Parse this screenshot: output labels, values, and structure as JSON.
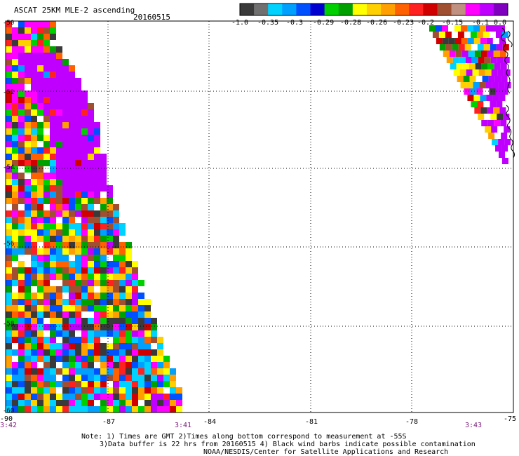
{
  "header": {
    "title": "ASCAT 25KM MLE-2 ascending",
    "date": "20160515"
  },
  "colorbar": {
    "colors": [
      "#3a3a3a",
      "#707070",
      "#00d2ff",
      "#00a0ff",
      "#0050ff",
      "#0000d0",
      "#00d000",
      "#00a000",
      "#ffff00",
      "#ffd000",
      "#ffa000",
      "#ff6000",
      "#ff2020",
      "#d00000",
      "#a05030",
      "#c09080",
      "#ff00ff",
      "#c000ff",
      "#8000c0"
    ],
    "ticks": [
      "-1.0",
      "-0.35",
      "-0.3",
      "-0.29",
      "-0.28",
      "-0.26",
      "-0.23",
      "-0.2",
      "-0.15",
      "-0.1",
      "0.0"
    ]
  },
  "map": {
    "lat_labels": [
      "-50",
      "-52",
      "-54",
      "-56",
      "-58",
      "-60"
    ],
    "lon_labels": [
      "-90",
      "-87",
      "-84",
      "-81",
      "-78",
      "-75"
    ],
    "times": [
      "3:42",
      "3:41",
      "3:43"
    ]
  },
  "notes": {
    "line1": "Note: 1) Times are GMT 2)Times along bottom correspond to measurement at -55S",
    "line2": "3)Data buffer is 22 hrs from 20160515 4) Black wind barbs indicate possible contamination",
    "line3": "NOAA/NESDIS/Center for Satellite Applications and Research"
  }
}
